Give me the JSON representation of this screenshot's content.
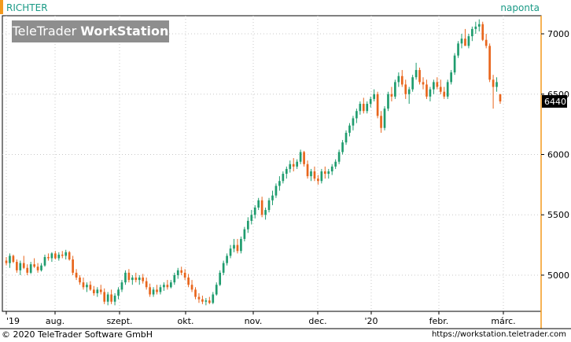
{
  "header": {
    "symbol": "RICHTER",
    "period": "naponta",
    "logo_part1": "TeleTrader ",
    "logo_part2": "WorkStation"
  },
  "footer": {
    "copyright": "© 2020 TeleTrader Software GmbH",
    "url": "https://workstation.teletrader.com"
  },
  "colors": {
    "up": "#1f9c6e",
    "down": "#e8651c",
    "accent": "#f39a1d",
    "price_box": "#000000",
    "brand_text": "#1a9a86"
  },
  "chart_data": {
    "type": "candlestick",
    "title": "RICHTER",
    "frequency": "naponta",
    "y_ticks": [
      5000,
      5500,
      6000,
      6500,
      7000
    ],
    "ylim": [
      4700,
      7150
    ],
    "x_tick_labels": [
      "'19",
      "aug.",
      "szept.",
      "okt.",
      "nov.",
      "dec.",
      "'20",
      "febr.",
      "márc."
    ],
    "last_price": 6440,
    "grid": true,
    "candles": [
      [
        5120,
        5150,
        5080,
        5100
      ],
      [
        5100,
        5180,
        5060,
        5160
      ],
      [
        5160,
        5170,
        5100,
        5110
      ],
      [
        5110,
        5130,
        5020,
        5040
      ],
      [
        5040,
        5120,
        5000,
        5100
      ],
      [
        5100,
        5160,
        5050,
        5060
      ],
      [
        5060,
        5090,
        5000,
        5020
      ],
      [
        5020,
        5110,
        5010,
        5090
      ],
      [
        5090,
        5140,
        5060,
        5070
      ],
      [
        5070,
        5100,
        5020,
        5040
      ],
      [
        5040,
        5100,
        5030,
        5080
      ],
      [
        5080,
        5170,
        5070,
        5150
      ],
      [
        5150,
        5180,
        5120,
        5140
      ],
      [
        5140,
        5190,
        5110,
        5180
      ],
      [
        5180,
        5200,
        5130,
        5140
      ],
      [
        5140,
        5190,
        5120,
        5170
      ],
      [
        5170,
        5200,
        5140,
        5160
      ],
      [
        5160,
        5210,
        5130,
        5190
      ],
      [
        5190,
        5200,
        5120,
        5130
      ],
      [
        5130,
        5160,
        5000,
        5020
      ],
      [
        5020,
        5050,
        4960,
        4980
      ],
      [
        4980,
        5000,
        4920,
        4940
      ],
      [
        4940,
        4980,
        4880,
        4900
      ],
      [
        4900,
        4940,
        4860,
        4920
      ],
      [
        4920,
        4950,
        4870,
        4880
      ],
      [
        4880,
        4910,
        4830,
        4850
      ],
      [
        4850,
        4900,
        4820,
        4880
      ],
      [
        4880,
        4920,
        4840,
        4860
      ],
      [
        4860,
        4890,
        4760,
        4780
      ],
      [
        4780,
        4860,
        4750,
        4840
      ],
      [
        4840,
        4880,
        4760,
        4780
      ],
      [
        4780,
        4850,
        4750,
        4830
      ],
      [
        4830,
        4900,
        4800,
        4880
      ],
      [
        4880,
        4960,
        4860,
        4940
      ],
      [
        4940,
        5040,
        4920,
        5020
      ],
      [
        5020,
        5050,
        4940,
        4960
      ],
      [
        4960,
        5000,
        4920,
        4980
      ],
      [
        4980,
        5020,
        4940,
        4960
      ],
      [
        4960,
        5000,
        4920,
        4980
      ],
      [
        4980,
        5010,
        4930,
        4950
      ],
      [
        4950,
        4980,
        4880,
        4900
      ],
      [
        4900,
        4930,
        4820,
        4840
      ],
      [
        4840,
        4900,
        4820,
        4880
      ],
      [
        4880,
        4920,
        4840,
        4860
      ],
      [
        4860,
        4920,
        4840,
        4900
      ],
      [
        4900,
        4940,
        4870,
        4920
      ],
      [
        4920,
        4960,
        4880,
        4900
      ],
      [
        4900,
        4960,
        4890,
        4940
      ],
      [
        4940,
        5020,
        4920,
        5000
      ],
      [
        5000,
        5060,
        4970,
        5040
      ],
      [
        5040,
        5070,
        5000,
        5020
      ],
      [
        5020,
        5050,
        4960,
        4980
      ],
      [
        4980,
        5010,
        4900,
        4920
      ],
      [
        4920,
        4960,
        4860,
        4880
      ],
      [
        4880,
        4900,
        4800,
        4820
      ],
      [
        4820,
        4850,
        4770,
        4800
      ],
      [
        4800,
        4830,
        4760,
        4780
      ],
      [
        4780,
        4810,
        4750,
        4790
      ],
      [
        4790,
        4820,
        4760,
        4770
      ],
      [
        4770,
        4860,
        4760,
        4840
      ],
      [
        4840,
        4940,
        4830,
        4920
      ],
      [
        4920,
        5040,
        4910,
        5020
      ],
      [
        5020,
        5120,
        5000,
        5100
      ],
      [
        5100,
        5180,
        5080,
        5160
      ],
      [
        5160,
        5250,
        5140,
        5220
      ],
      [
        5220,
        5300,
        5190,
        5250
      ],
      [
        5250,
        5300,
        5180,
        5200
      ],
      [
        5200,
        5320,
        5180,
        5300
      ],
      [
        5300,
        5400,
        5280,
        5380
      ],
      [
        5380,
        5480,
        5350,
        5450
      ],
      [
        5450,
        5540,
        5420,
        5500
      ],
      [
        5500,
        5580,
        5470,
        5560
      ],
      [
        5560,
        5640,
        5540,
        5620
      ],
      [
        5620,
        5650,
        5480,
        5500
      ],
      [
        5500,
        5560,
        5460,
        5540
      ],
      [
        5540,
        5640,
        5520,
        5620
      ],
      [
        5620,
        5700,
        5580,
        5660
      ],
      [
        5660,
        5760,
        5640,
        5740
      ],
      [
        5740,
        5820,
        5700,
        5780
      ],
      [
        5780,
        5860,
        5760,
        5840
      ],
      [
        5840,
        5900,
        5800,
        5880
      ],
      [
        5880,
        5950,
        5850,
        5920
      ],
      [
        5920,
        5970,
        5860,
        5900
      ],
      [
        5900,
        5960,
        5880,
        5940
      ],
      [
        5940,
        6040,
        5920,
        6020
      ],
      [
        6020,
        6030,
        5900,
        5920
      ],
      [
        5920,
        5950,
        5800,
        5820
      ],
      [
        5820,
        5880,
        5780,
        5860
      ],
      [
        5860,
        5900,
        5780,
        5800
      ],
      [
        5800,
        5830,
        5750,
        5780
      ],
      [
        5780,
        5880,
        5760,
        5860
      ],
      [
        5860,
        5900,
        5800,
        5840
      ],
      [
        5840,
        5880,
        5800,
        5860
      ],
      [
        5860,
        5920,
        5830,
        5900
      ],
      [
        5900,
        5960,
        5880,
        5940
      ],
      [
        5940,
        6040,
        5920,
        6020
      ],
      [
        6020,
        6120,
        6000,
        6100
      ],
      [
        6100,
        6200,
        6080,
        6180
      ],
      [
        6180,
        6260,
        6150,
        6240
      ],
      [
        6240,
        6320,
        6200,
        6300
      ],
      [
        6300,
        6380,
        6260,
        6360
      ],
      [
        6360,
        6440,
        6330,
        6420
      ],
      [
        6420,
        6470,
        6340,
        6360
      ],
      [
        6360,
        6440,
        6340,
        6420
      ],
      [
        6420,
        6480,
        6390,
        6460
      ],
      [
        6460,
        6540,
        6440,
        6500
      ],
      [
        6500,
        6520,
        6300,
        6320
      ],
      [
        6320,
        6360,
        6180,
        6220
      ],
      [
        6220,
        6400,
        6200,
        6380
      ],
      [
        6380,
        6520,
        6360,
        6500
      ],
      [
        6500,
        6560,
        6440,
        6480
      ],
      [
        6480,
        6620,
        6460,
        6600
      ],
      [
        6600,
        6680,
        6560,
        6650
      ],
      [
        6650,
        6700,
        6560,
        6580
      ],
      [
        6580,
        6620,
        6460,
        6500
      ],
      [
        6500,
        6560,
        6420,
        6540
      ],
      [
        6540,
        6660,
        6520,
        6640
      ],
      [
        6640,
        6760,
        6620,
        6700
      ],
      [
        6700,
        6720,
        6580,
        6600
      ],
      [
        6600,
        6640,
        6540,
        6580
      ],
      [
        6580,
        6620,
        6460,
        6480
      ],
      [
        6480,
        6560,
        6440,
        6540
      ],
      [
        6540,
        6620,
        6500,
        6600
      ],
      [
        6600,
        6640,
        6540,
        6560
      ],
      [
        6560,
        6620,
        6500,
        6520
      ],
      [
        6520,
        6560,
        6460,
        6480
      ],
      [
        6480,
        6620,
        6460,
        6600
      ],
      [
        6600,
        6700,
        6580,
        6680
      ],
      [
        6680,
        6840,
        6660,
        6820
      ],
      [
        6820,
        6940,
        6800,
        6920
      ],
      [
        6920,
        7000,
        6880,
        6960
      ],
      [
        6960,
        7040,
        6900,
        6900
      ],
      [
        6900,
        7000,
        6880,
        6980
      ],
      [
        6980,
        7060,
        6940,
        7040
      ],
      [
        7040,
        7100,
        7000,
        7060
      ],
      [
        7060,
        7120,
        7020,
        7080
      ],
      [
        7080,
        7100,
        6940,
        6950
      ],
      [
        6950,
        7000,
        6880,
        6900
      ],
      [
        6900,
        6920,
        6600,
        6620
      ],
      [
        6620,
        6660,
        6380,
        6560
      ],
      [
        6560,
        6640,
        6520,
        6600
      ],
      [
        6500,
        6500,
        6420,
        6440
      ]
    ]
  }
}
